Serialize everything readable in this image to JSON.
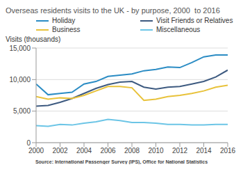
{
  "chart_data": {
    "type": "line",
    "title": "Overseas residents visits to the UK - by purpose, 2000  to 2016",
    "y_label": "Visits (thousands)",
    "source": "Source: International Passenger Survey (IPS), Office for National Statistics",
    "x": [
      2000,
      2001,
      2002,
      2003,
      2004,
      2005,
      2006,
      2007,
      2008,
      2009,
      2010,
      2011,
      2012,
      2013,
      2014,
      2015,
      2016
    ],
    "xlim": [
      2000,
      2016
    ],
    "xticks": [
      2000,
      2002,
      2004,
      2006,
      2008,
      2010,
      2012,
      2014,
      2016
    ],
    "ylim": [
      0,
      15000
    ],
    "yticks": [
      0,
      {
        "value": 5000,
        "label": "5,000"
      },
      {
        "value": 10000,
        "label": "10,000"
      },
      {
        "value": 15000,
        "label": "15,000"
      }
    ],
    "grid": true,
    "legend": "top",
    "series": [
      {
        "name": "Holiday",
        "color": "#2b8cc4",
        "values": [
          9300,
          7600,
          7800,
          8000,
          9300,
          9700,
          10500,
          10700,
          10900,
          11400,
          11600,
          12000,
          11900,
          12700,
          13600,
          13900,
          13900
        ]
      },
      {
        "name": "Visit Friends or Relatives",
        "color": "#3d5a80",
        "values": [
          5800,
          5900,
          6400,
          7000,
          7800,
          8600,
          9200,
          9600,
          9700,
          8800,
          8500,
          8800,
          8900,
          9300,
          9700,
          10400,
          11500
        ]
      },
      {
        "name": "Business",
        "color": "#e8c23a",
        "values": [
          7300,
          6900,
          7100,
          7000,
          7500,
          8200,
          8900,
          8900,
          8700,
          6700,
          6900,
          7300,
          7500,
          7800,
          8200,
          8800,
          9100
        ]
      },
      {
        "name": "Miscellaneous",
        "color": "#6cc5e6",
        "values": [
          2700,
          2600,
          2900,
          2800,
          3100,
          3300,
          3700,
          3500,
          3200,
          3200,
          3100,
          2900,
          2900,
          2800,
          2800,
          2900,
          2900
        ]
      }
    ]
  }
}
